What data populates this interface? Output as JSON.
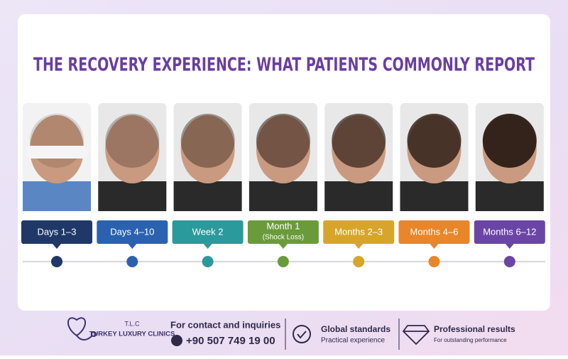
{
  "title": "THE RECOVERY EXPERIENCE: WHAT PATIENTS COMMONLY REPORT",
  "stages": [
    {
      "label": "Days 1–3",
      "color": "#1f3868"
    },
    {
      "label": "Days 4–10",
      "color": "#2a62b0"
    },
    {
      "label": "Week 2",
      "color": "#2a9a9c"
    },
    {
      "label": "Month 1",
      "sublabel": "(Shock Loss)",
      "color": "#6a9b3a"
    },
    {
      "label": "Months 2–3",
      "color": "#d6a52a"
    },
    {
      "label": "Months 4–6",
      "color": "#e9862a"
    },
    {
      "label": "Months 6–12",
      "color": "#6b45a6"
    }
  ],
  "footer": {
    "brand_short": "T.L.C",
    "brand": "TURKEY LUXURY CLINICS",
    "contact_label": "For contact and inquiries",
    "phone": "+90 507 749 19 00",
    "feature1": {
      "title": "Global standards",
      "subtitle": "Practical experience"
    },
    "feature2": {
      "title": "Professional results",
      "subtitle": "For outstanding performance"
    }
  }
}
